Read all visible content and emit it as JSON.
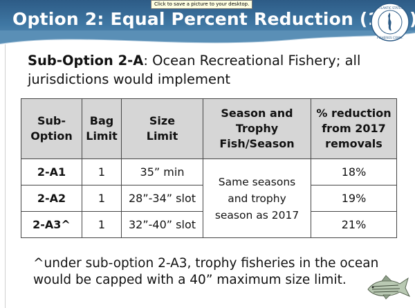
{
  "tooltip": "Click to save a picture to your desktop.",
  "header": {
    "title": "Option 2: Equal Percent Reduction (18%)",
    "logo_text": "ATLANTIC STATES MARINE FISHERIES COMMISSION"
  },
  "subtitle": {
    "bold": "Sub-Option 2-A",
    "rest": ": Ocean Recreational Fishery; all jurisdictions would implement"
  },
  "table": {
    "headers": [
      "Sub-Option",
      "Bag Limit",
      "Size Limit",
      "Season and Trophy Fish/Season",
      "% reduction from 2017 removals"
    ],
    "header_lines": [
      [
        "Sub-",
        "Option"
      ],
      [
        "Bag",
        "Limit"
      ],
      [
        "Size",
        "Limit"
      ],
      [
        "Season and",
        "Trophy",
        "Fish/Season"
      ],
      [
        "% reduction",
        "from 2017",
        "removals"
      ]
    ],
    "rows": [
      {
        "option": "2-A1",
        "bag": "1",
        "size": "35” min",
        "reduction": "18%"
      },
      {
        "option": "2-A2",
        "bag": "1",
        "size": "28”-34” slot",
        "reduction": "19%"
      },
      {
        "option": "2-A3^",
        "bag": "1",
        "size": "32”-40” slot",
        "reduction": "21%"
      }
    ],
    "merged_season": [
      "Same seasons",
      "and trophy",
      "season as 2017"
    ]
  },
  "footnote": "^under sub-option 2-A3, trophy fisheries in the ocean would be capped with a 40” maximum size limit.",
  "colors": {
    "header_blue": "#3f77a3",
    "header_gray": "#d6d6d6"
  }
}
